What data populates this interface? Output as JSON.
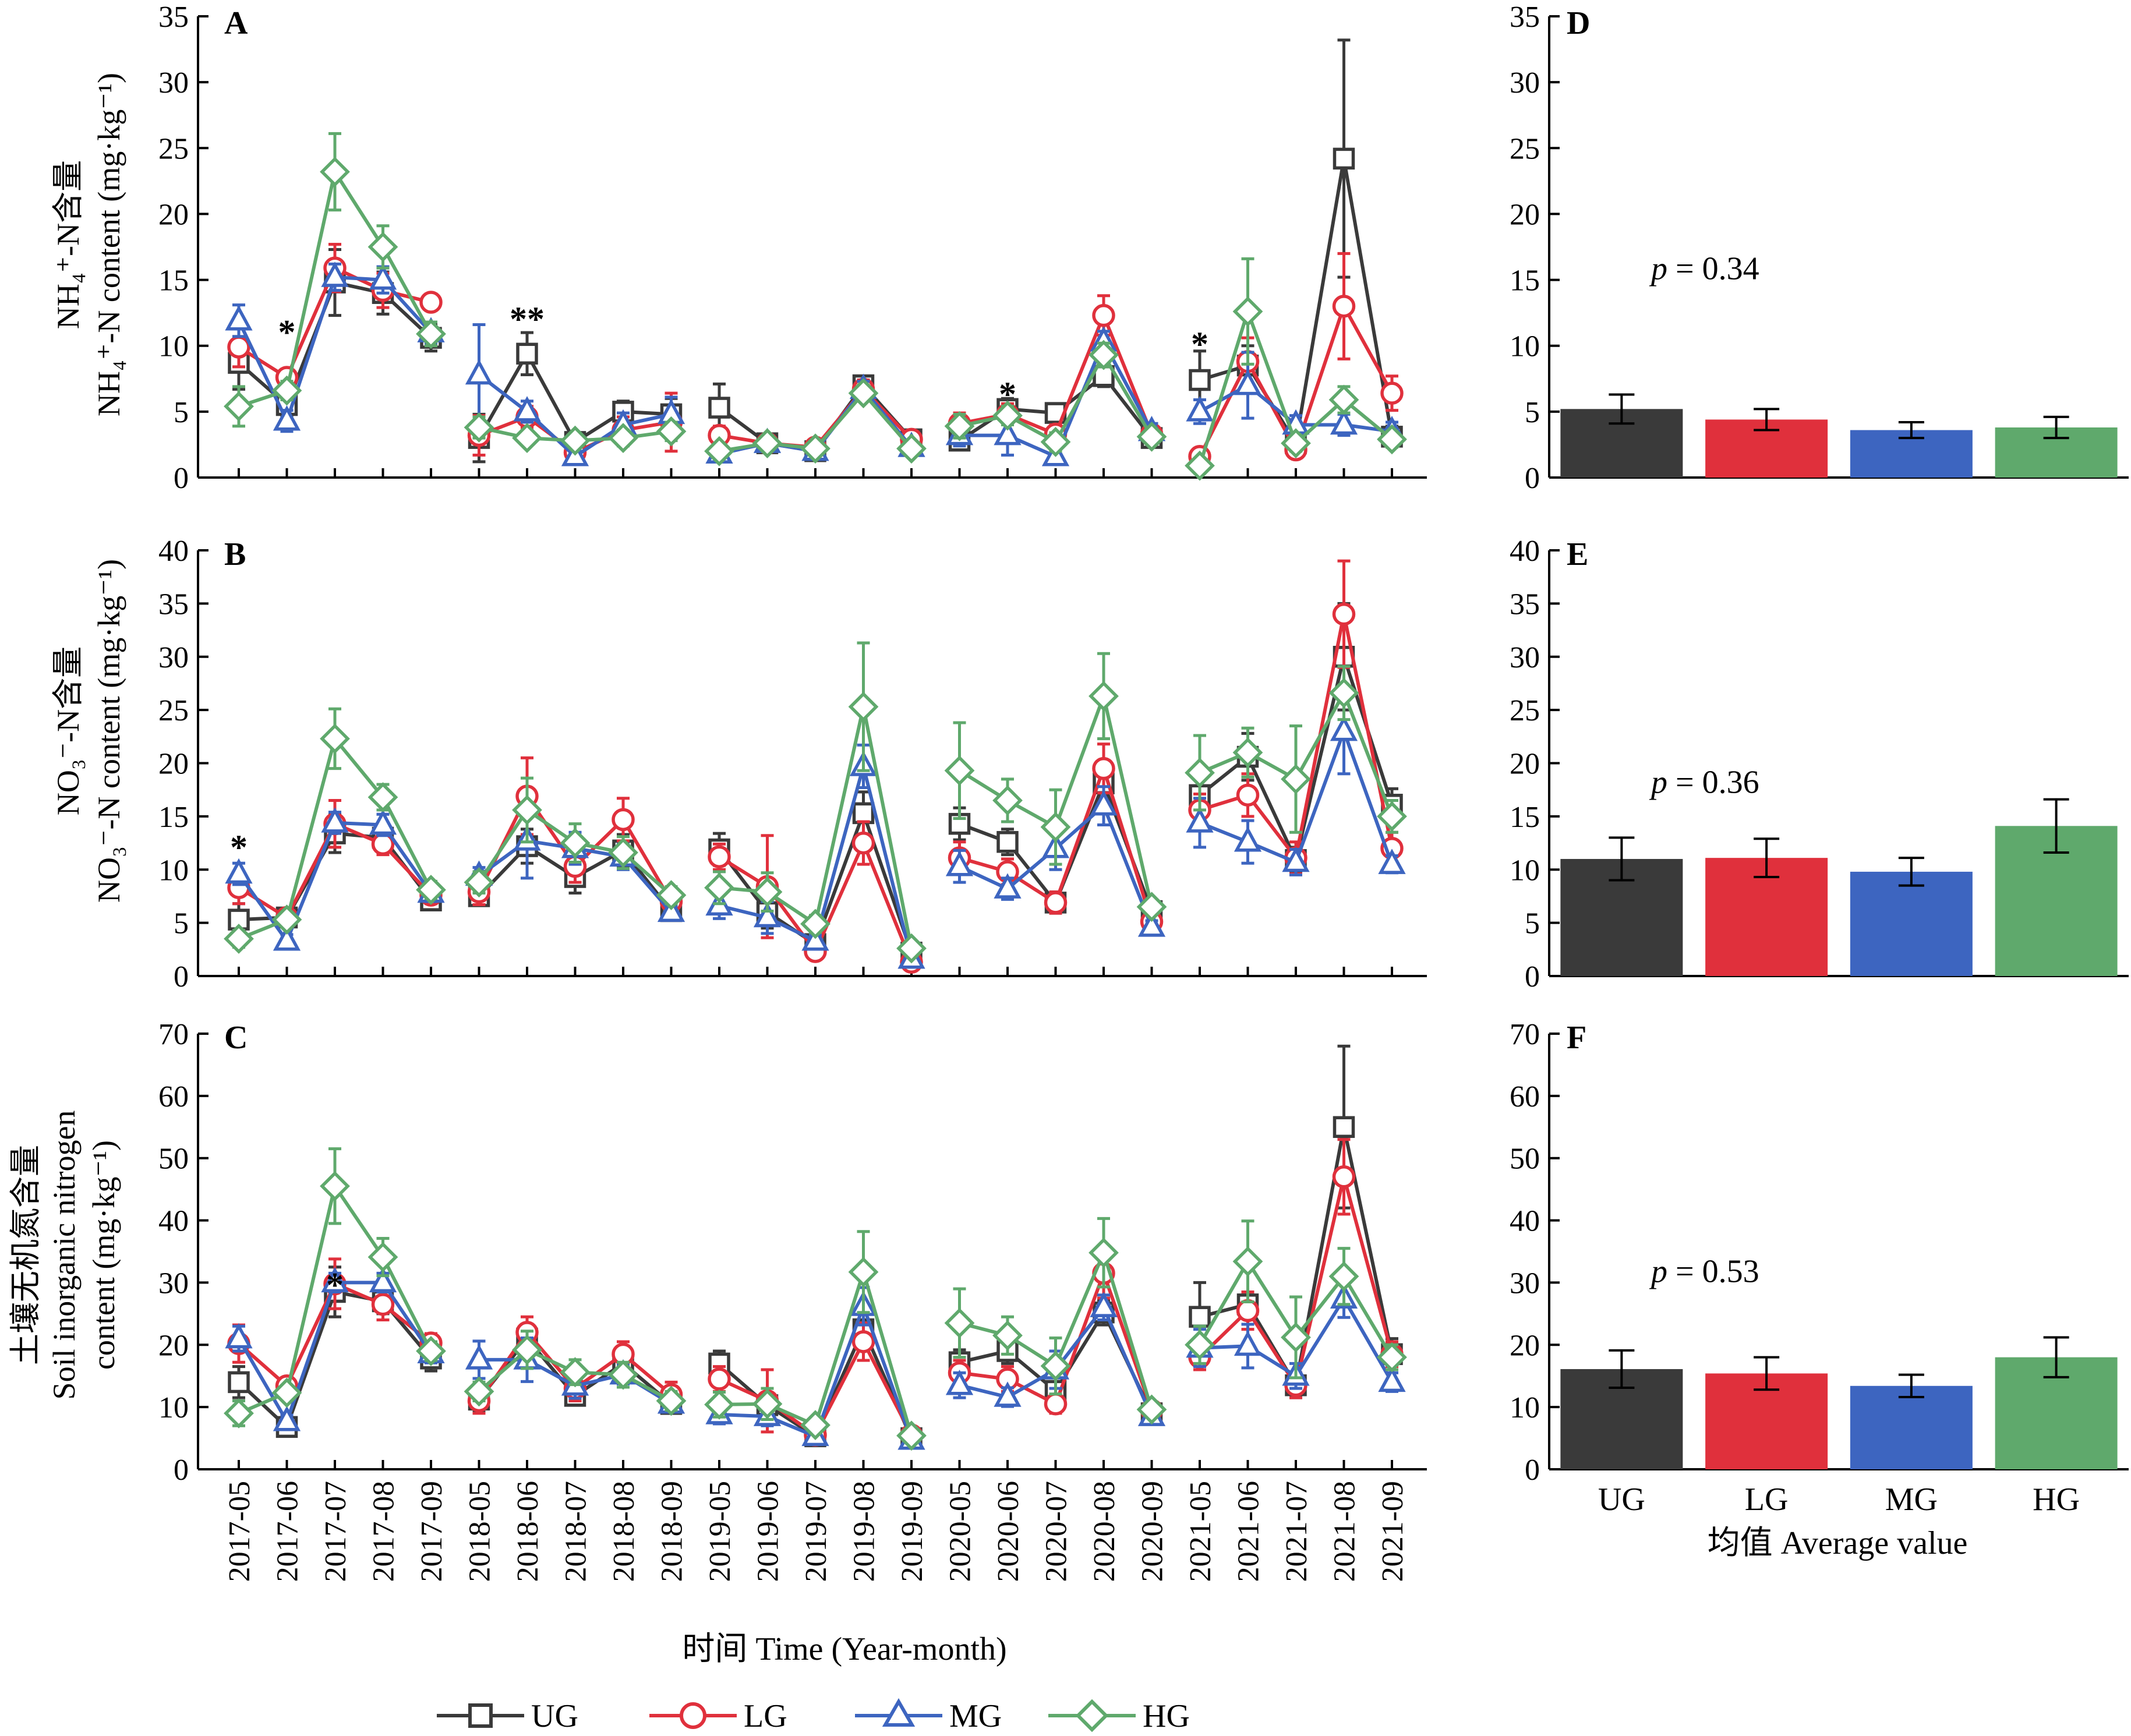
{
  "x_axis": {
    "ticks": [
      "2017-05",
      "2017-06",
      "2017-07",
      "2017-08",
      "2017-09",
      "2018-05",
      "2018-06",
      "2018-07",
      "2018-08",
      "2018-09",
      "2019-05",
      "2019-06",
      "2019-07",
      "2019-08",
      "2019-09",
      "2020-05",
      "2020-06",
      "2020-07",
      "2020-08",
      "2020-09",
      "2021-05",
      "2021-06",
      "2021-07",
      "2021-08",
      "2021-09"
    ],
    "label": "时间 Time (Year-month)"
  },
  "bar_axis_label": "均值 Average value",
  "legend": [
    {
      "name": "UG",
      "color": "#3a3a3a",
      "marker": "square"
    },
    {
      "name": "LG",
      "color": "#e0303c",
      "marker": "circle"
    },
    {
      "name": "MG",
      "color": "#3d65c0",
      "marker": "triangle"
    },
    {
      "name": "HG",
      "color": "#5fa96c",
      "marker": "diamond"
    }
  ],
  "chart_data": [
    {
      "type": "line",
      "panel": "A",
      "ylabel_cn": "NH₄⁺-N含量",
      "ylabel_en": "NH₄⁺-N content (mg·kg⁻¹)",
      "ylim": [
        0,
        35
      ],
      "yticks": [
        "0",
        "5",
        "10",
        "15",
        "20",
        "25",
        "30",
        "35"
      ],
      "annotations": [
        {
          "text": "*",
          "x": "2017-06",
          "y": 11.2
        },
        {
          "text": "**",
          "x": "2018-06",
          "y": 12.2
        },
        {
          "text": "*",
          "x": "2020-06",
          "y": 6.5
        },
        {
          "text": "*",
          "x": "2021-05",
          "y": 10.3
        }
      ],
      "series": [
        {
          "name": "UG",
          "values": [
            8.7,
            5.5,
            14.8,
            14.0,
            10.6,
            3.0,
            9.4,
            2.7,
            5.0,
            4.8,
            5.3,
            2.6,
            2.0,
            7.0,
            2.9,
            2.8,
            5.2,
            4.9,
            7.7,
            3.0,
            7.4,
            8.5,
            2.6,
            24.2,
            3.1
          ],
          "errors": [
            2.0,
            0.8,
            2.5,
            1.6,
            1.0,
            1.8,
            1.6,
            0.5,
            0.8,
            1.2,
            1.8,
            0.6,
            0.5,
            0.6,
            0.5,
            0.7,
            0.8,
            0.6,
            0.8,
            0.6,
            2.2,
            1.5,
            0.6,
            9.0,
            0.8
          ]
        },
        {
          "name": "LG",
          "values": [
            9.9,
            7.6,
            15.9,
            14.2,
            13.3,
            3.2,
            4.6,
            1.9,
            3.6,
            4.2,
            3.2,
            2.6,
            2.3,
            6.7,
            2.9,
            4.1,
            4.8,
            3.3,
            12.3,
            3.3,
            1.6,
            8.8,
            2.1,
            13.0,
            6.4
          ],
          "errors": [
            1.5,
            0.6,
            1.8,
            1.3,
            0.4,
            1.5,
            0.8,
            0.5,
            1.0,
            2.2,
            0.7,
            0.6,
            0.6,
            0.7,
            0.5,
            0.8,
            0.8,
            0.7,
            1.5,
            0.6,
            0.4,
            1.8,
            0.5,
            4.0,
            1.3
          ]
        },
        {
          "name": "MG",
          "values": [
            11.9,
            4.3,
            15.2,
            15.0,
            11.0,
            7.8,
            5.0,
            1.6,
            4.0,
            4.8,
            1.8,
            2.6,
            2.0,
            6.7,
            2.3,
            3.2,
            3.2,
            1.6,
            10.3,
            3.5,
            5.0,
            7.0,
            4.0,
            4.0,
            3.5
          ],
          "errors": [
            1.2,
            0.8,
            1.0,
            1.0,
            0.8,
            3.8,
            0.8,
            0.4,
            0.9,
            1.3,
            0.4,
            0.6,
            0.5,
            0.6,
            0.4,
            0.8,
            1.5,
            0.6,
            0.8,
            0.6,
            0.9,
            2.5,
            0.7,
            0.8,
            0.7
          ]
        },
        {
          "name": "HG",
          "values": [
            5.4,
            6.6,
            23.2,
            17.5,
            10.9,
            3.8,
            3.0,
            2.8,
            3.0,
            3.5,
            2.0,
            2.6,
            2.2,
            6.4,
            2.2,
            3.9,
            4.7,
            2.7,
            9.3,
            3.1,
            0.9,
            12.6,
            2.6,
            5.9,
            2.9
          ],
          "errors": [
            1.5,
            0.7,
            2.9,
            1.6,
            0.9,
            0.8,
            0.5,
            0.5,
            0.6,
            0.7,
            0.5,
            0.5,
            0.5,
            0.6,
            0.4,
            0.9,
            0.7,
            0.7,
            0.9,
            0.5,
            0.3,
            4.0,
            0.6,
            1.0,
            0.6
          ]
        }
      ]
    },
    {
      "type": "line",
      "panel": "B",
      "ylabel_cn": "NO₃⁻-N含量",
      "ylabel_en": "NO₃⁻-N content (mg·kg⁻¹)",
      "ylim": [
        0,
        40
      ],
      "yticks": [
        "0",
        "5",
        "10",
        "15",
        "20",
        "25",
        "30",
        "35",
        "40"
      ],
      "annotations": [
        {
          "text": "*",
          "x": "2017-05",
          "y": 12.3
        }
      ],
      "series": [
        {
          "name": "UG",
          "values": [
            5.3,
            5.5,
            13.4,
            13.0,
            7.1,
            7.5,
            12.2,
            9.3,
            11.8,
            6.1,
            11.9,
            6.0,
            3.0,
            15.3,
            2.2,
            14.3,
            12.6,
            6.9,
            18.1,
            6.1,
            17.0,
            20.6,
            10.9,
            30.0,
            16.1
          ],
          "errors": [
            1.5,
            0.8,
            1.8,
            1.0,
            0.8,
            0.8,
            1.6,
            1.5,
            1.5,
            0.7,
            1.5,
            1.5,
            0.6,
            2.0,
            0.5,
            1.5,
            1.2,
            1.0,
            1.8,
            0.7,
            2.0,
            2.2,
            1.2,
            5.0,
            1.5
          ]
        },
        {
          "name": "LG",
          "values": [
            8.3,
            5.5,
            14.3,
            12.4,
            7.6,
            7.9,
            16.9,
            10.3,
            14.7,
            7.0,
            11.2,
            8.4,
            2.3,
            12.5,
            1.3,
            11.1,
            9.8,
            6.9,
            19.5,
            5.1,
            15.6,
            17.0,
            11.1,
            34.0,
            12.0
          ],
          "errors": [
            1.5,
            0.8,
            2.2,
            1.0,
            0.8,
            1.2,
            3.6,
            1.5,
            2.0,
            0.8,
            1.2,
            4.8,
            0.5,
            2.0,
            0.4,
            1.5,
            1.2,
            1.0,
            2.3,
            0.6,
            1.5,
            2.0,
            1.5,
            5.0,
            1.5
          ]
        },
        {
          "name": "MG",
          "values": [
            9.6,
            3.3,
            14.4,
            14.2,
            7.8,
            9.4,
            12.7,
            12.0,
            11.2,
            6.0,
            6.6,
            5.5,
            3.3,
            19.7,
            1.6,
            10.3,
            8.2,
            12.0,
            16.0,
            4.6,
            14.4,
            12.6,
            10.7,
            23.0,
            10.5
          ],
          "errors": [
            1.0,
            0.6,
            1.0,
            1.0,
            0.8,
            0.8,
            3.5,
            1.5,
            1.2,
            0.6,
            1.2,
            1.5,
            0.6,
            2.0,
            0.4,
            1.5,
            1.0,
            2.0,
            1.8,
            0.6,
            2.3,
            2.0,
            1.2,
            4.0,
            0.8
          ]
        },
        {
          "name": "HG",
          "values": [
            3.5,
            5.3,
            22.3,
            16.8,
            8.1,
            8.8,
            15.6,
            12.5,
            11.6,
            7.6,
            8.3,
            7.9,
            4.9,
            25.3,
            2.6,
            19.3,
            16.5,
            14.0,
            26.3,
            6.5,
            19.1,
            21.0,
            18.5,
            26.6,
            15.0
          ],
          "errors": [
            0.8,
            0.7,
            2.8,
            1.2,
            0.8,
            1.0,
            3.0,
            1.8,
            1.5,
            0.8,
            1.5,
            1.8,
            0.8,
            6.0,
            0.6,
            4.5,
            2.0,
            3.5,
            4.0,
            0.6,
            3.5,
            2.3,
            5.0,
            2.5,
            1.5
          ]
        }
      ]
    },
    {
      "type": "line",
      "panel": "C",
      "ylabel_cn": "土壤无机氮含量",
      "ylabel_en_1": "Soil inorganic nitrogen",
      "ylabel_en_2": "content (mg·kg⁻¹)",
      "ylim": [
        0,
        70
      ],
      "yticks": [
        "0",
        "10",
        "20",
        "30",
        "40",
        "50",
        "60",
        "70"
      ],
      "annotations": [
        {
          "text": "*",
          "x": "2017-07",
          "y": 30.0
        }
      ],
      "series": [
        {
          "name": "UG",
          "values": [
            14.0,
            6.8,
            28.5,
            27.0,
            17.8,
            11.2,
            21.0,
            11.8,
            17.0,
            10.5,
            17.0,
            10.3,
            5.3,
            22.5,
            5.0,
            17.2,
            19.0,
            12.6,
            25.2,
            9.0,
            24.5,
            26.5,
            13.5,
            55.0,
            18.5
          ],
          "errors": [
            2.5,
            1.0,
            4.0,
            2.0,
            2.0,
            2.0,
            2.0,
            1.5,
            2.0,
            1.5,
            2.0,
            2.0,
            0.8,
            3.0,
            0.8,
            2.0,
            2.0,
            1.5,
            2.0,
            1.0,
            5.5,
            6.5,
            2.0,
            13.0,
            2.5
          ]
        },
        {
          "name": "LG",
          "values": [
            20.2,
            13.4,
            29.8,
            26.5,
            20.3,
            11.0,
            22.0,
            13.0,
            18.5,
            12.0,
            14.5,
            11.0,
            5.5,
            20.5,
            5.5,
            15.5,
            14.5,
            10.5,
            31.5,
            9.5,
            18.0,
            25.5,
            13.5,
            47.0,
            18.5
          ],
          "errors": [
            3.0,
            1.0,
            4.0,
            2.5,
            1.5,
            2.0,
            2.5,
            2.0,
            2.0,
            2.0,
            2.0,
            5.0,
            1.0,
            3.0,
            0.8,
            2.0,
            2.0,
            1.5,
            4.0,
            1.0,
            2.0,
            3.0,
            2.0,
            6.0,
            2.0
          ]
        },
        {
          "name": "MG",
          "values": [
            21.0,
            7.7,
            30.0,
            30.0,
            18.6,
            17.6,
            17.6,
            13.4,
            15.2,
            10.5,
            8.8,
            8.5,
            5.3,
            26.2,
            4.7,
            13.5,
            11.6,
            16.0,
            26.0,
            8.5,
            19.5,
            19.8,
            15.0,
            27.4,
            14.0
          ],
          "errors": [
            2.0,
            1.0,
            1.5,
            1.5,
            1.5,
            3.0,
            3.5,
            2.0,
            1.5,
            1.0,
            1.5,
            1.5,
            0.8,
            3.0,
            0.8,
            2.0,
            1.5,
            3.0,
            2.0,
            1.0,
            3.0,
            3.5,
            2.0,
            3.0,
            1.5
          ]
        },
        {
          "name": "HG",
          "values": [
            9.0,
            12.3,
            45.5,
            34.1,
            19.0,
            12.5,
            19.2,
            15.6,
            15.2,
            11.0,
            10.4,
            10.5,
            7.1,
            31.7,
            5.4,
            23.5,
            21.5,
            16.6,
            34.8,
            9.6,
            20.0,
            33.4,
            21.2,
            31.0,
            18.0
          ],
          "errors": [
            2.0,
            1.0,
            6.0,
            3.0,
            1.5,
            1.5,
            3.0,
            2.0,
            2.0,
            1.5,
            2.0,
            2.5,
            1.0,
            6.5,
            1.0,
            5.5,
            3.0,
            4.5,
            5.5,
            1.0,
            3.0,
            6.5,
            6.5,
            4.5,
            2.0
          ]
        }
      ]
    },
    {
      "type": "bar",
      "panel": "D",
      "categories": [
        "UG",
        "LG",
        "MG",
        "HG"
      ],
      "ylim": [
        0,
        35
      ],
      "yticks": [
        "0",
        "5",
        "10",
        "15",
        "20",
        "25",
        "30",
        "35"
      ],
      "values": [
        5.2,
        4.4,
        3.6,
        3.8
      ],
      "errors": [
        1.1,
        0.8,
        0.6,
        0.8
      ],
      "p_prefix": "p",
      "p_value": " = 0.34"
    },
    {
      "type": "bar",
      "panel": "E",
      "categories": [
        "UG",
        "LG",
        "MG",
        "HG"
      ],
      "ylim": [
        0,
        40
      ],
      "yticks": [
        "0",
        "5",
        "10",
        "15",
        "20",
        "25",
        "30",
        "35",
        "40"
      ],
      "values": [
        11.0,
        11.1,
        9.8,
        14.1
      ],
      "errors": [
        2.0,
        1.8,
        1.3,
        2.5
      ],
      "p_prefix": "p",
      "p_value": " = 0.36"
    },
    {
      "type": "bar",
      "panel": "F",
      "categories": [
        "UG",
        "LG",
        "MG",
        "HG"
      ],
      "ylim": [
        0,
        70
      ],
      "yticks": [
        "0",
        "10",
        "20",
        "30",
        "40",
        "50",
        "60",
        "70"
      ],
      "values": [
        16.1,
        15.4,
        13.4,
        18.0
      ],
      "errors": [
        3.0,
        2.6,
        1.8,
        3.2
      ],
      "p_prefix": "p",
      "p_value": " = 0.53"
    }
  ]
}
